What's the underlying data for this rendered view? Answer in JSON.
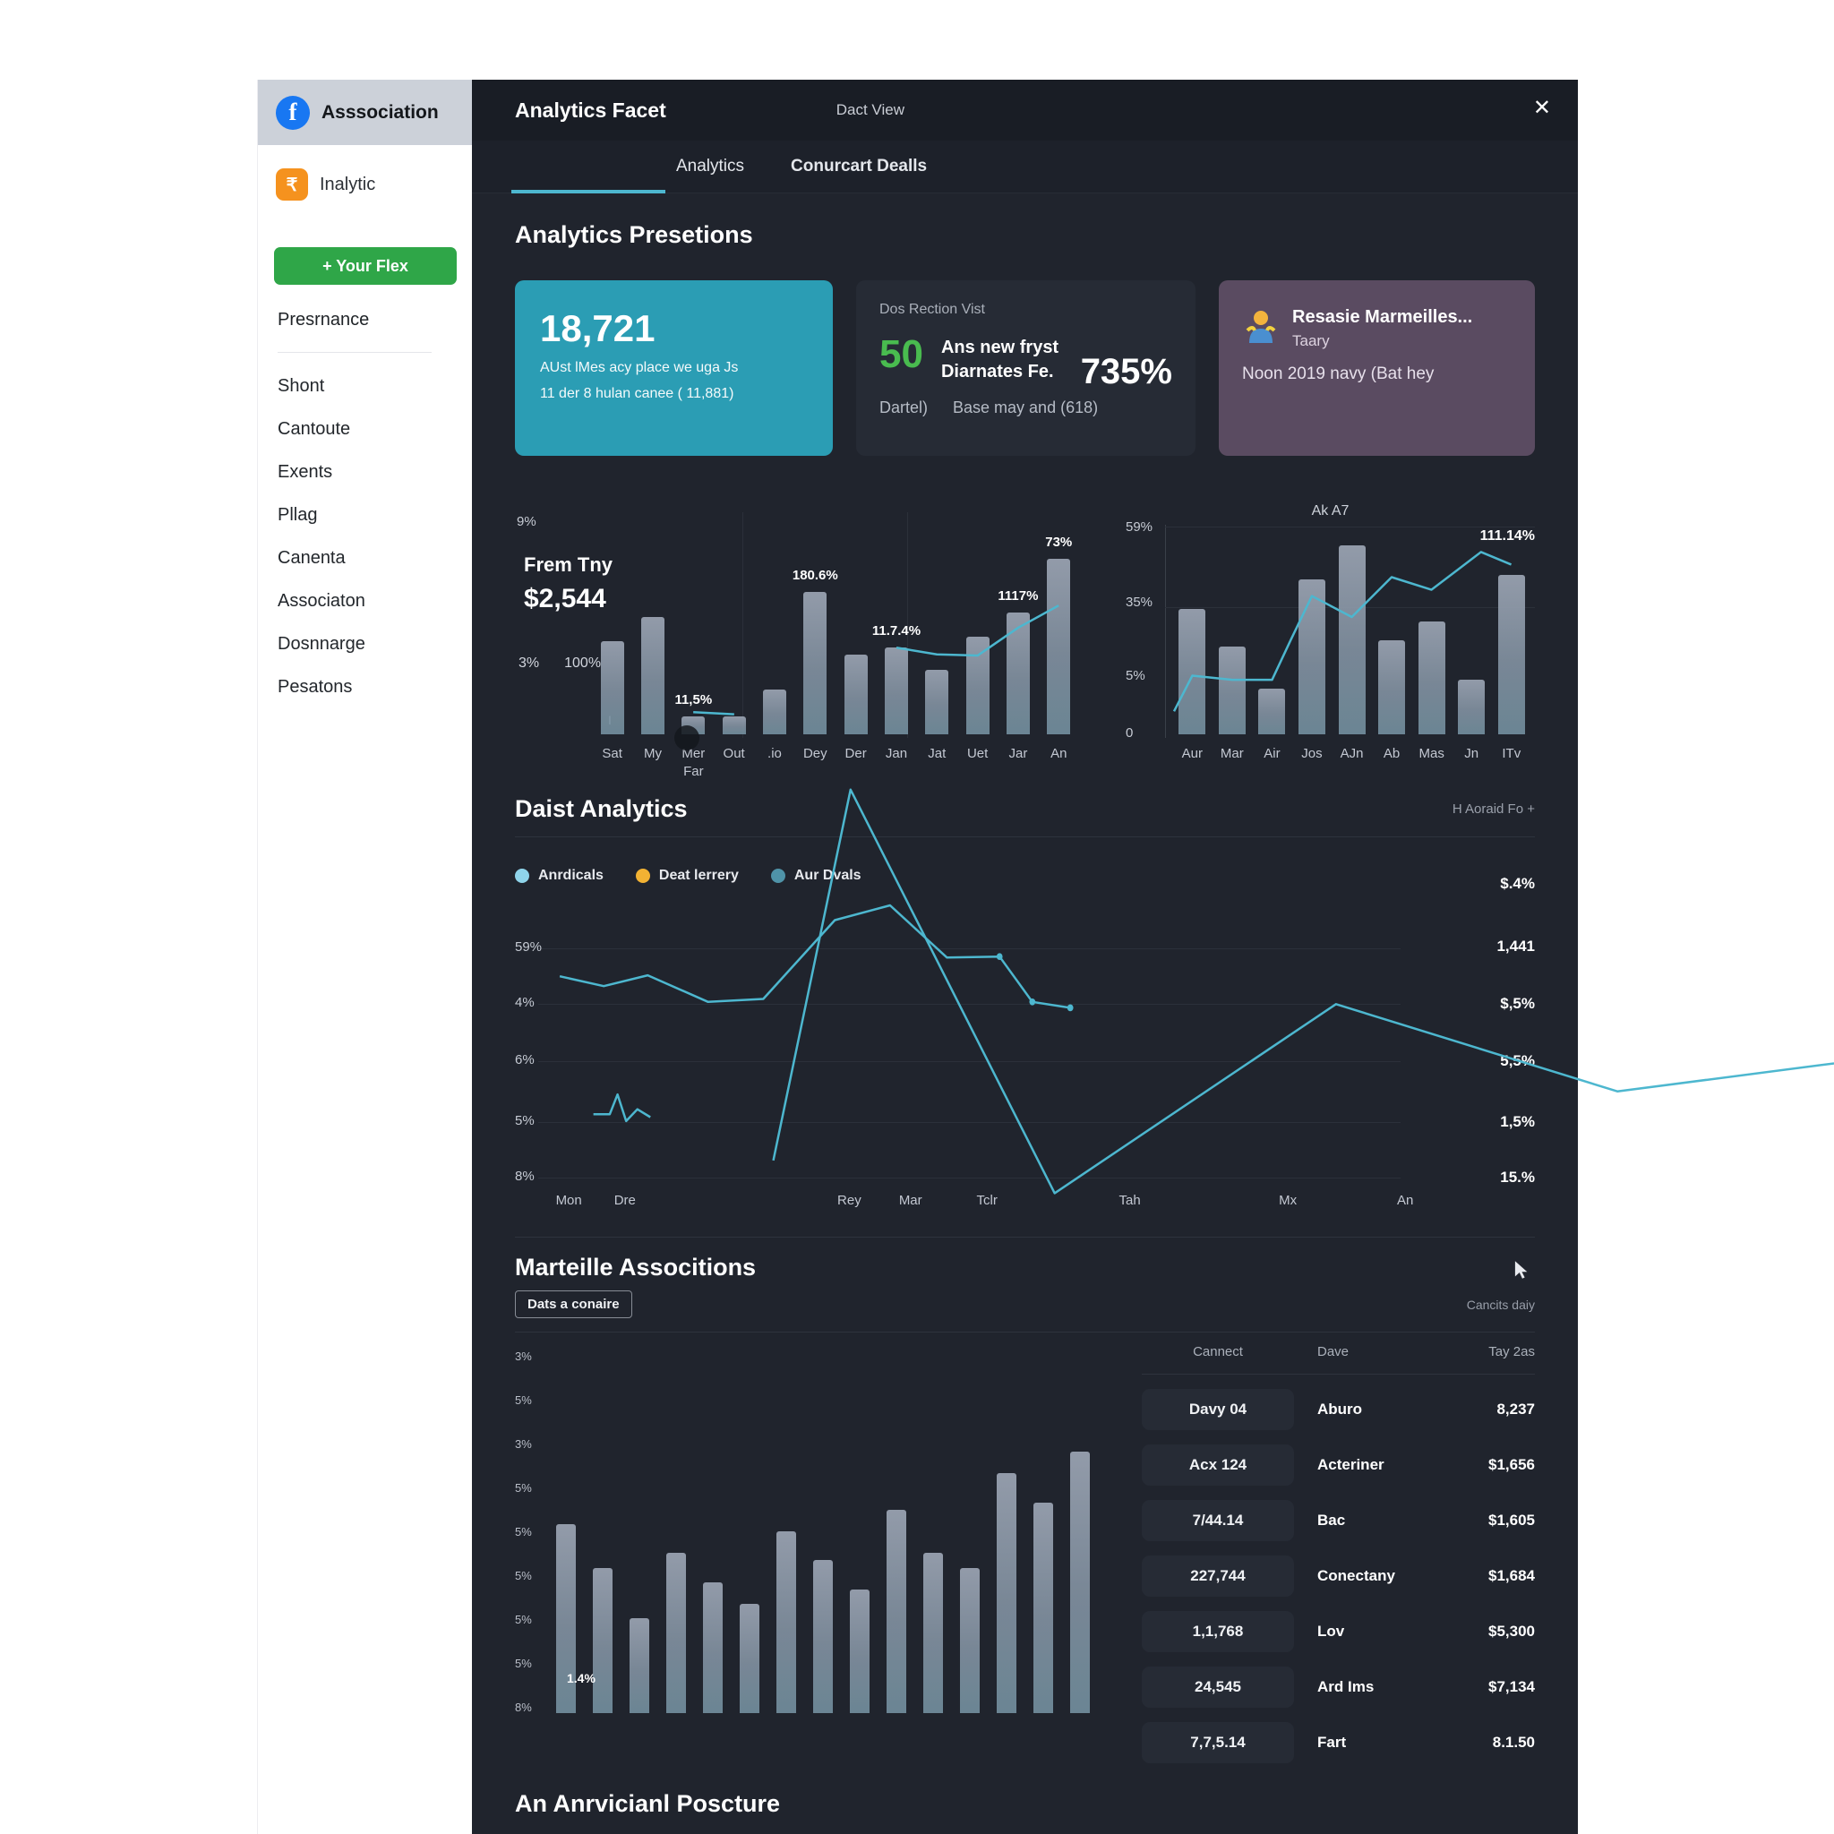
{
  "colors": {
    "accent_teal": "#4db7cf",
    "card_teal": "#2b9db4",
    "card_purple": "#5a4b61",
    "green": "#2fa648",
    "green_number": "#49bb4f",
    "facebook_blue": "#1877f2",
    "orange_icon": "#f5921e",
    "panel_bg": "#20242d",
    "bar_gray": "#8a97a8"
  },
  "sidebar": {
    "brand": "Asssociation",
    "analytic_label": "Inalytic",
    "button_label": "+ Your Flex",
    "primary_item": "Presrnance",
    "items": [
      "Shont",
      "Cantoute",
      "Exents",
      "Pllag",
      "Canenta",
      "Associaton",
      "Dosnnarge",
      "Pesatons"
    ]
  },
  "header": {
    "title": "Analytics Facet",
    "subtitle": "Dact View",
    "close": "✕"
  },
  "tabs": [
    {
      "label": "Analytics",
      "bold": false
    },
    {
      "label": "Conurcart Dealls",
      "bold": true
    }
  ],
  "sections": {
    "presetions": "Analytics Presetions",
    "daist": "Daist Analytics",
    "daist_link": "H Aoraid Fo +",
    "marteille": "Marteille Associtions",
    "marteille_chip": "Dats a conaire",
    "marteille_right": "Cancits daiy",
    "bottom": "An Anrvicianl Poscture"
  },
  "cards": {
    "visits": {
      "value": "18,721",
      "line1": "AUst lMes acy place we uga Js",
      "line2": "11 der 8 hulan canee ( 11,881)"
    },
    "reaction": {
      "label": "Dos Rection Vist",
      "count": "50",
      "bold1": "Ans new fryst",
      "bold2": "Diarnates Fe.",
      "sub_left": "Dartel)",
      "sub_right": "Base may and (618)",
      "pct": "735%"
    },
    "profile": {
      "title": "Resasie Marmeilles...",
      "subtitle": "Taary",
      "line": "Noon 2019 navy (Bat hey"
    }
  },
  "legend": [
    {
      "label": "Anrdicals",
      "color": "#8fd4ea"
    },
    {
      "label": "Deat lerrery",
      "color": "#f2b233"
    },
    {
      "label": "Aur Dvals",
      "color": "#4f93a8"
    }
  ],
  "table": {
    "headers": [
      "Cannect",
      "Dave",
      "Tay 2as"
    ],
    "rows": [
      [
        "Davy 04",
        "Aburo",
        "8,237"
      ],
      [
        "Acx 124",
        "Acteriner",
        "$1,656"
      ],
      [
        "7/44.14",
        "Bac",
        "$1,605"
      ],
      [
        "227,744",
        "Conectany",
        "$1,684"
      ],
      [
        "1,1,768",
        "Lov",
        "$5,300"
      ],
      [
        "24,545",
        "Ard Ims",
        "$7,134"
      ],
      [
        "7,7,5.14",
        "Fart",
        "8.1.50"
      ]
    ]
  },
  "chart_data": [
    {
      "id": "spend-bar-chart",
      "type": "bar",
      "block_title": "Frem Tny",
      "block_value": "$2,544",
      "corner_label": "9%",
      "mid_labels": [
        "3%",
        "100%"
      ],
      "tick_label": "I",
      "categories": [
        "Sat",
        "My",
        "Mer",
        "Out",
        ".io",
        "Dey",
        "Der",
        "Jan",
        "Jat",
        "Uet",
        "Jar",
        "An"
      ],
      "sublabels": {
        "2": "Far"
      },
      "values": [
        42,
        53,
        8,
        8,
        20,
        64,
        36,
        39,
        29,
        44,
        55,
        79
      ],
      "annotations": {
        "2": "11,5%",
        "5": "180.6%",
        "7": "11.7.4%",
        "10": "1117%",
        "11": "73%"
      },
      "line_segments": [
        [
          [
            20.8,
            10
          ],
          [
            29.2,
            9
          ]
        ],
        [
          [
            62.5,
            39
          ],
          [
            70.8,
            36
          ],
          [
            79.2,
            35.5
          ],
          [
            87.5,
            48
          ],
          [
            95.8,
            58
          ]
        ]
      ]
    },
    {
      "id": "monthly-bar-line-chart",
      "type": "bar",
      "title": "Ak A7",
      "annotation": "111.14%",
      "ylabels": [
        "59%",
        "35%",
        "5%",
        "0"
      ],
      "categories": [
        "Aur",
        "Mar",
        "Air",
        "Jos",
        "AJn",
        "Ab",
        "Mas",
        "Jn",
        "ITv"
      ],
      "values": [
        60,
        42,
        22,
        74,
        90,
        45,
        54,
        26,
        76
      ],
      "line": [
        [
          0.5,
          11
        ],
        [
          5.6,
          28
        ],
        [
          16.7,
          26
        ],
        [
          27.8,
          26
        ],
        [
          33,
          45
        ],
        [
          38.9,
          66
        ],
        [
          50,
          56
        ],
        [
          61.1,
          75
        ],
        [
          72.2,
          69
        ],
        [
          86,
          87
        ],
        [
          94.4,
          81
        ]
      ]
    },
    {
      "id": "daist-line-chart",
      "type": "line",
      "ylabels": [
        "59%",
        "4%",
        "6%",
        "5%",
        "8%"
      ],
      "right_values": [
        "$.4%",
        "1,441",
        "$,5%",
        "5,5%",
        "1,5%",
        "15.%"
      ],
      "xlabels": [
        [
          "Mon",
          3
        ],
        [
          "Dre",
          8.5
        ],
        [
          "Rey",
          30.5
        ],
        [
          "Mar",
          36.5
        ],
        [
          "Tclr",
          44
        ],
        [
          "Tah",
          58
        ],
        [
          "Mx",
          73.5
        ],
        [
          "An",
          85
        ]
      ],
      "series": [
        {
          "name": "Anrdicals",
          "points": [
            [
              25,
              92
            ],
            [
              76,
              102
            ],
            [
              127,
              91
            ],
            [
              197,
              118
            ],
            [
              261,
              115
            ],
            [
              344,
              35
            ],
            [
              408,
              20
            ],
            [
              474,
              73
            ],
            [
              535,
              72
            ],
            [
              573,
              118
            ],
            [
              617,
              124
            ]
          ]
        },
        {
          "name": "Aur Dvals",
          "points": [
            [
              64,
              232
            ],
            [
              83,
              232
            ],
            [
              92,
              212
            ],
            [
              102,
              239
            ],
            [
              115,
              227
            ],
            [
              130,
              235
            ]
          ]
        }
      ]
    },
    {
      "id": "marteille-bar-line-chart",
      "type": "bar",
      "ylabels": [
        "3%",
        "5%",
        "3%",
        "5%",
        "5%",
        "5%",
        "5%",
        "5%",
        "8%"
      ],
      "values": [
        52,
        40,
        26,
        44,
        36,
        30,
        50,
        42,
        34,
        56,
        44,
        40,
        66,
        58,
        72
      ],
      "annotation": "1.4%",
      "line": [
        [
          41,
          152
        ],
        [
          55,
          254
        ],
        [
          92,
          143
        ],
        [
          143,
          195
        ],
        [
          194,
          171
        ],
        [
          245,
          181
        ],
        [
          296,
          169
        ],
        [
          347,
          152
        ],
        [
          398,
          148
        ],
        [
          449,
          157
        ],
        [
          500,
          143
        ],
        [
          551,
          167
        ],
        [
          602,
          152
        ],
        [
          653,
          162
        ],
        [
          704,
          181
        ],
        [
          755,
          157
        ],
        [
          806,
          114
        ],
        [
          857,
          100
        ],
        [
          908,
          95
        ],
        [
          959,
          102
        ]
      ]
    }
  ]
}
